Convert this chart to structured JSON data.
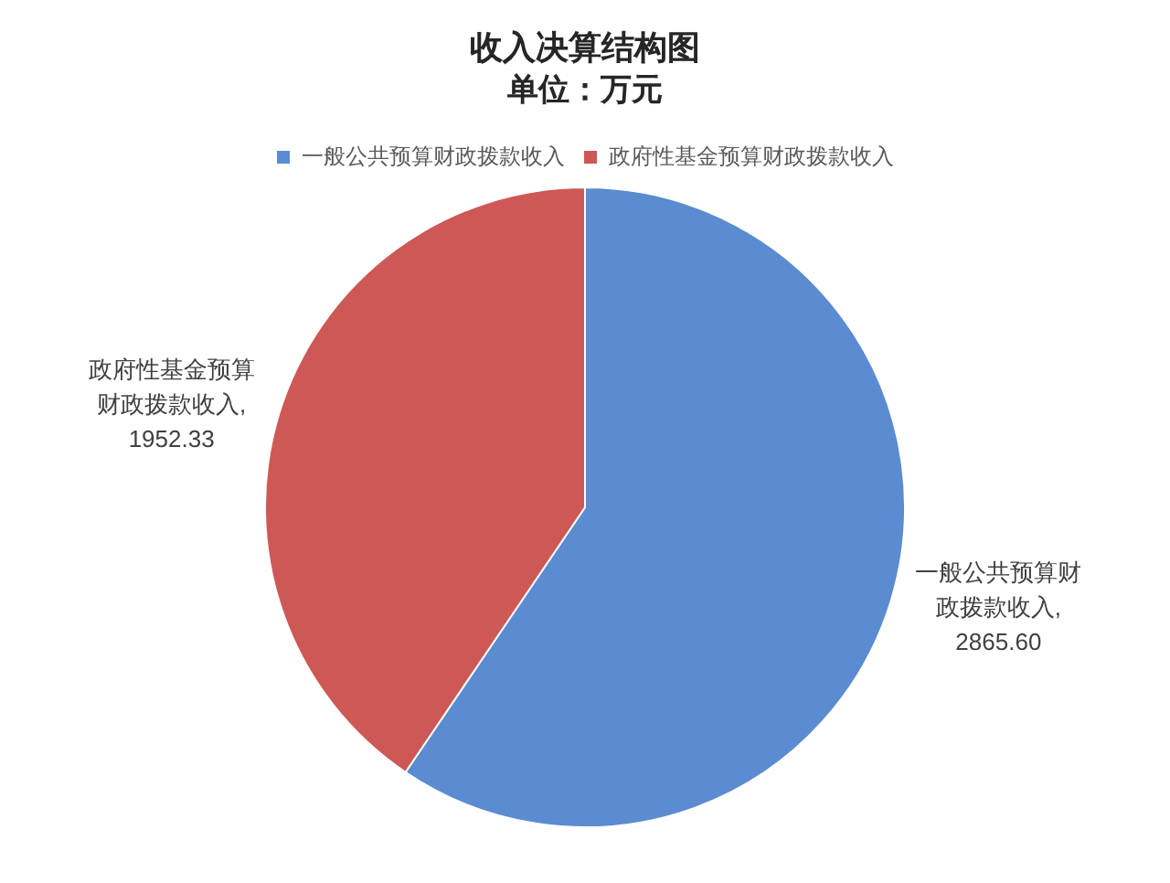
{
  "chart_data": {
    "type": "pie",
    "title": "收入决算结构图",
    "subtitle": "单位：万元",
    "categories": [
      "一般公共预算财政拨款收入",
      "政府性基金预算财政拨款收入"
    ],
    "values": [
      2865.6,
      1952.33
    ],
    "value_labels": [
      "一般公共预算财政拨款收入,\n2865.60",
      "政府性基金预算财政拨款收入,\n1952.33"
    ],
    "colors": [
      "#5b8bd0",
      "#cd5855"
    ],
    "legend": "top"
  }
}
